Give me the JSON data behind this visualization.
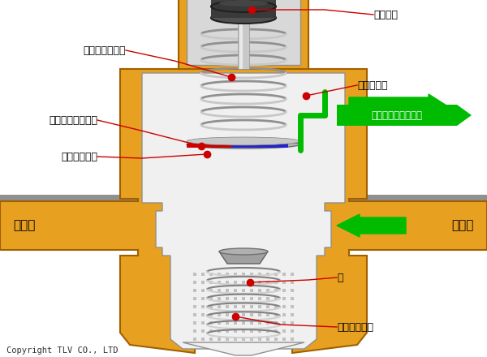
{
  "bg_color": "#ffffff",
  "gold": "#E8A020",
  "gold_dark": "#C07010",
  "gold_edge": "#A06000",
  "silver": "#C8C8C8",
  "silver_dark": "#909090",
  "silver_edge": "#707070",
  "white_inner": "#F0F0F0",
  "handle_top": "#383838",
  "handle_mid": "#484848",
  "handle_bot": "#585858",
  "stem_color": "#D0D0D0",
  "spring_color": "#B8B8B8",
  "spring_edge": "#808080",
  "green": "#00BB00",
  "red": "#CC0000",
  "blue": "#2222CC",
  "pipe_fill": "#C0C0C0",
  "pipe_stripe": "#909090",
  "copyright": "Copyright TLV CO., LTD",
  "labels": {
    "handle": "ハンドル",
    "relief_hole": "リリーフ穴",
    "adjust_spring": "調節スプリング",
    "relief_seat": "リリーフ弁シート",
    "diaphragm": "ダイヤフラム",
    "valve": "弁",
    "valve_spring": "弁スプリング",
    "primary": "一次側",
    "secondary": "二次側",
    "escape_label": "二次側からの逃がし"
  }
}
